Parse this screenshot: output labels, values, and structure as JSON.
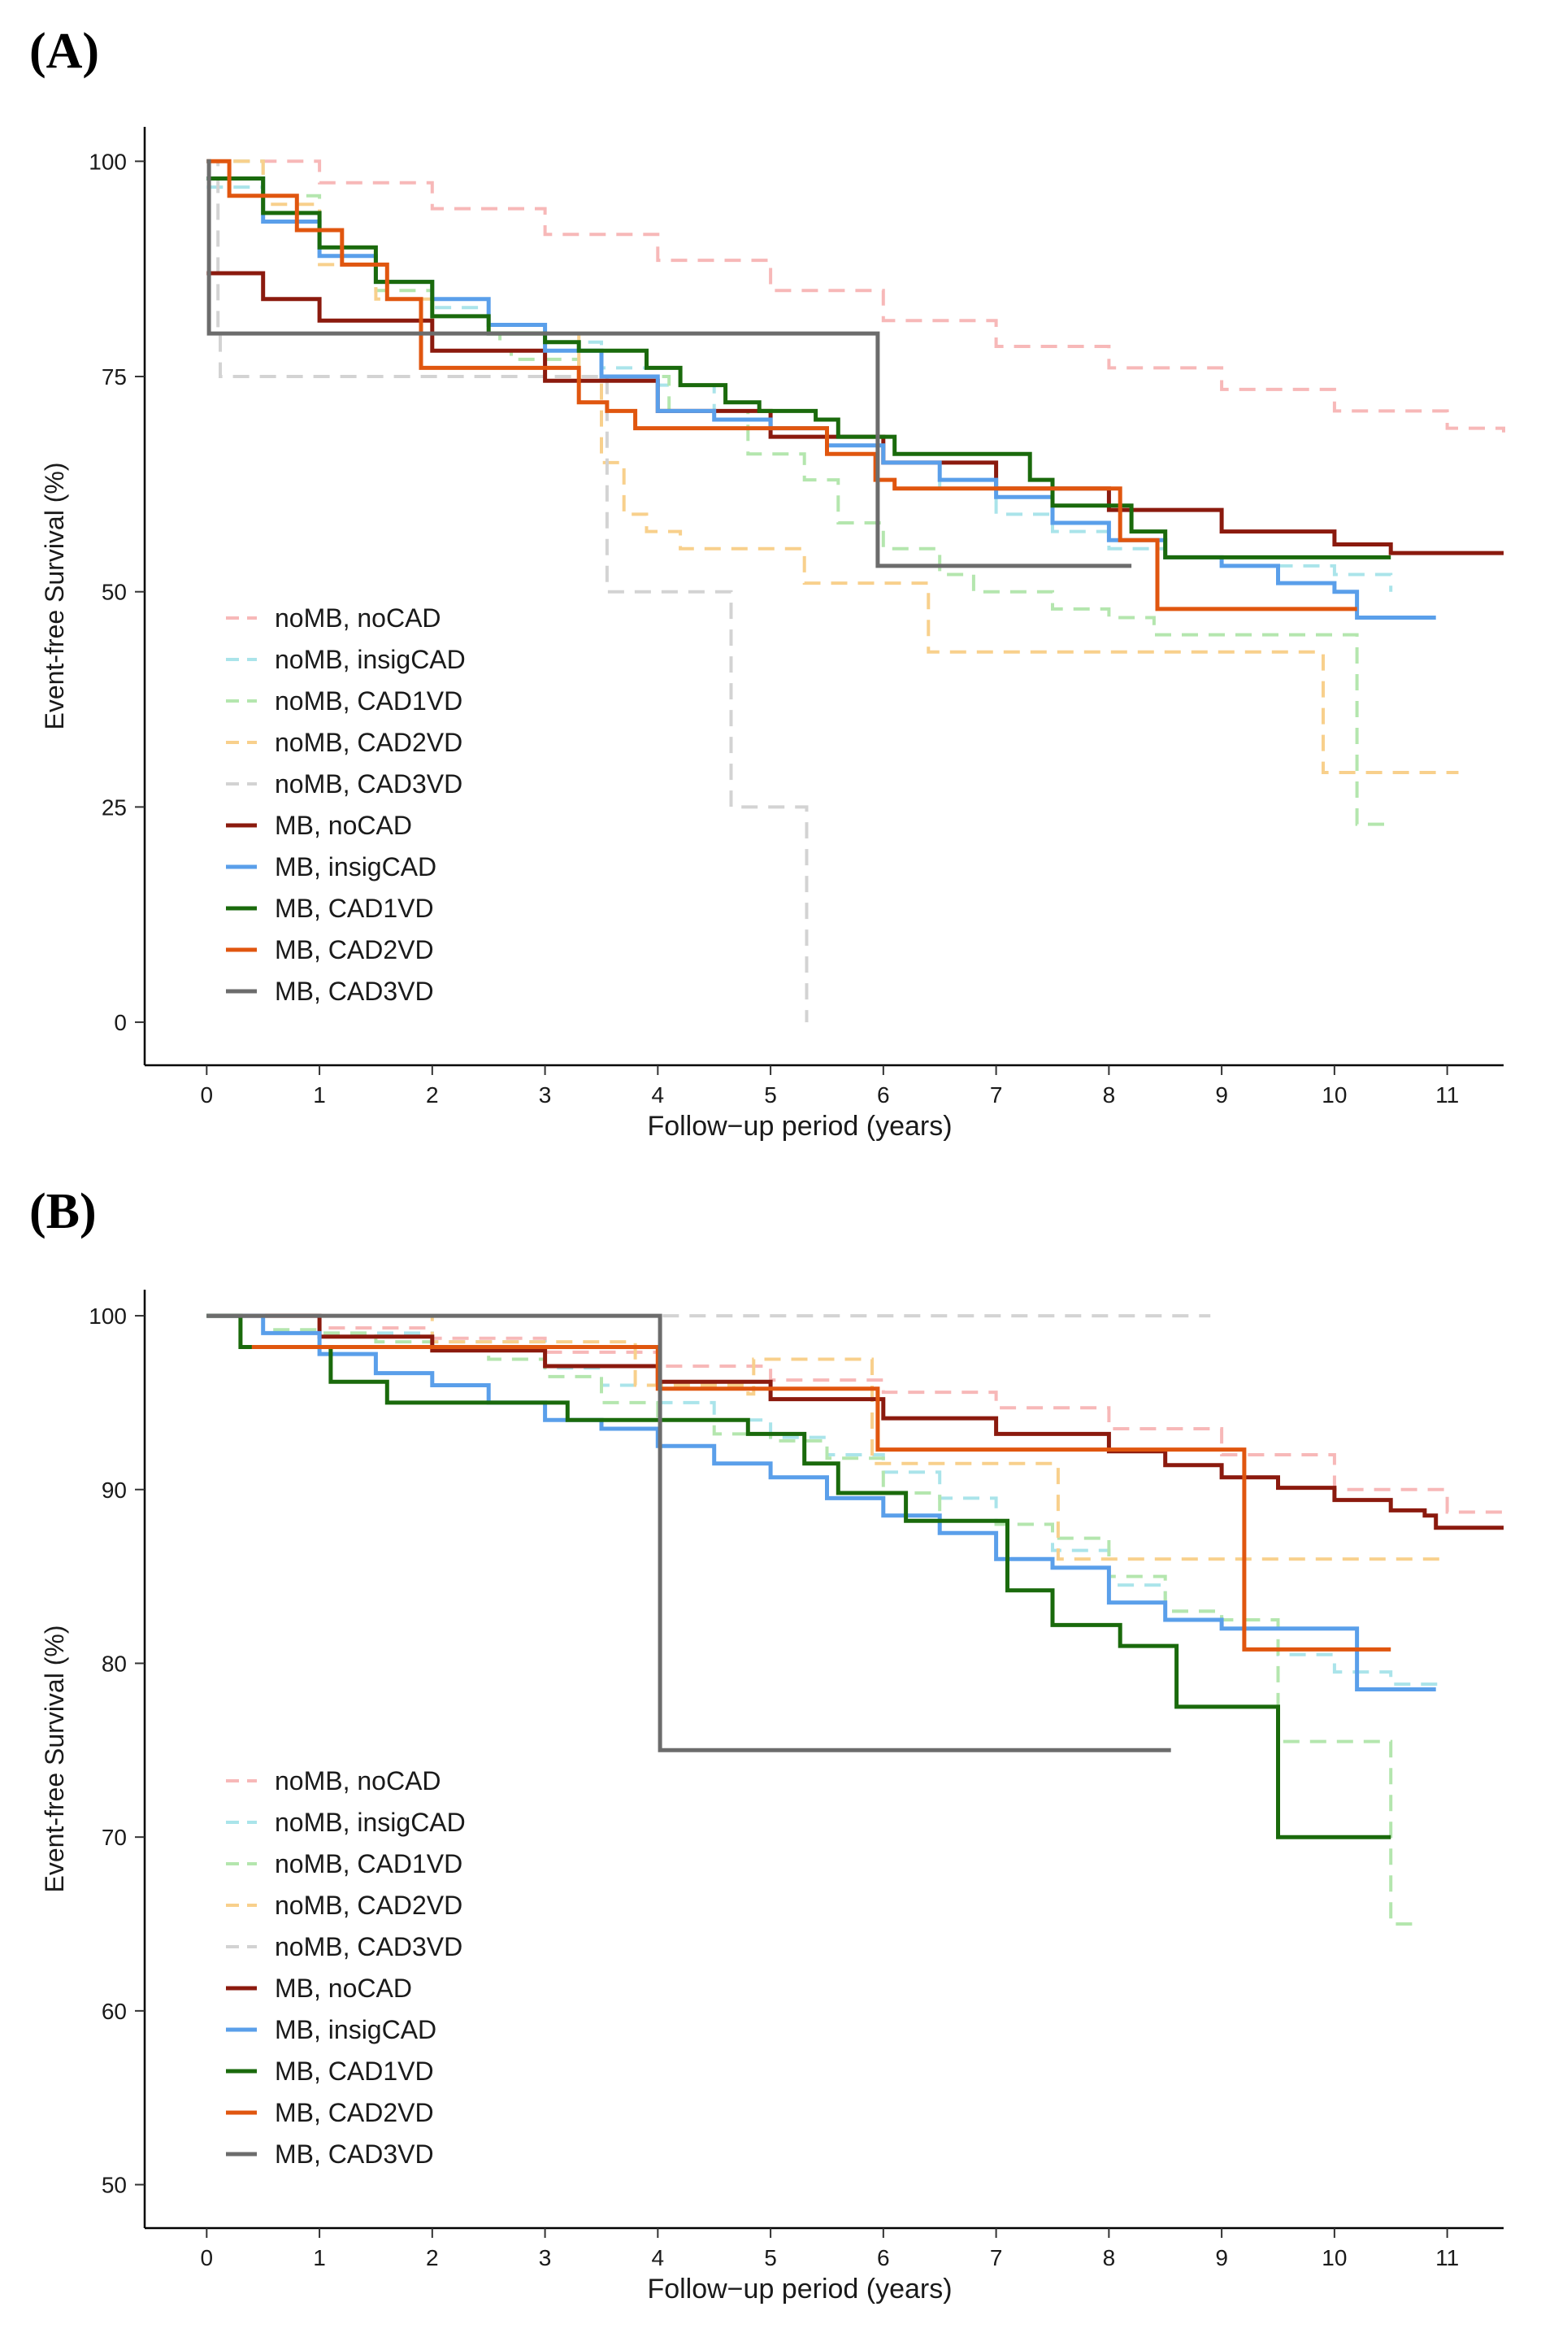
{
  "panels": [
    {
      "id": "A",
      "label": "(A)"
    },
    {
      "id": "B",
      "label": "(B)"
    }
  ],
  "legend_labels": [
    "noMB, noCAD",
    "noMB, insigCAD",
    "noMB, CAD1VD",
    "noMB, CAD2VD",
    "noMB, CAD3VD",
    "MB, noCAD",
    "MB, insigCAD",
    "MB, CAD1VD",
    "MB, CAD2VD",
    "MB, CAD3VD"
  ],
  "series_styles": [
    {
      "color": "#f7b8b8",
      "dash": true
    },
    {
      "color": "#aae4ea",
      "dash": true
    },
    {
      "color": "#b4e6ae",
      "dash": true
    },
    {
      "color": "#f8d08c",
      "dash": true
    },
    {
      "color": "#d3d3d3",
      "dash": true
    },
    {
      "color": "#8b1a0e",
      "dash": false
    },
    {
      "color": "#5a9fea",
      "dash": false
    },
    {
      "color": "#1a6a0c",
      "dash": false
    },
    {
      "color": "#e0560f",
      "dash": false
    },
    {
      "color": "#6c6c6c",
      "dash": false
    }
  ],
  "chart_data": [
    {
      "type": "line",
      "subtype": "kaplan-meier step",
      "title": "(A)",
      "xlabel": "Follow−up period (years)",
      "ylabel": "Event-free Survival (%)",
      "xlim": [
        -0.55,
        11.5
      ],
      "ylim": [
        -5,
        104
      ],
      "xticks": [
        0,
        1,
        2,
        3,
        4,
        5,
        6,
        7,
        8,
        9,
        10,
        11
      ],
      "yticks": [
        0,
        25,
        50,
        75,
        100
      ],
      "legend_position": "bottom-left",
      "series": [
        {
          "name": "noMB, noCAD",
          "x": [
            0,
            1,
            2,
            3,
            4,
            5,
            6,
            7,
            8,
            9,
            10,
            11,
            11.5
          ],
          "y": [
            100,
            97.5,
            94.5,
            91.5,
            88.5,
            85,
            81.5,
            78.5,
            76,
            73.5,
            71,
            69,
            68.5
          ]
        },
        {
          "name": "noMB, insigCAD",
          "x": [
            0,
            0.5,
            1,
            1.5,
            2,
            2.5,
            3,
            3.5,
            4,
            4.5,
            5,
            5.5,
            6,
            6.5,
            7,
            7.5,
            8,
            8.5,
            9,
            9.5,
            10,
            10.5
          ],
          "y": [
            97,
            93,
            89,
            86,
            83,
            81,
            79,
            76,
            74,
            71,
            69,
            67,
            65,
            62,
            59,
            57,
            55,
            54,
            53,
            53,
            52,
            50
          ]
        },
        {
          "name": "noMB, CAD1VD",
          "x": [
            0,
            0.5,
            1,
            1.5,
            2,
            2.6,
            2.7,
            3.3,
            4.1,
            4.8,
            5.3,
            5.6,
            6,
            6.5,
            6.8,
            7.5,
            8,
            8.4,
            9,
            10.1,
            10.2,
            10.5
          ],
          "y": [
            100,
            96,
            90,
            85,
            80,
            78,
            77,
            75,
            71,
            66,
            63,
            58,
            55,
            52,
            50,
            48,
            47,
            45,
            45,
            45,
            23,
            23
          ]
        },
        {
          "name": "noMB, CAD2VD",
          "x": [
            0,
            0.5,
            1,
            1.5,
            2.5,
            3.3,
            3.5,
            3.7,
            3.9,
            4.2,
            5.1,
            5.3,
            6.1,
            6.4,
            7.2,
            9.3,
            9.9,
            10,
            11.1
          ],
          "y": [
            100,
            95,
            88,
            84,
            80,
            75,
            65,
            59,
            57,
            55,
            55,
            51,
            51,
            43,
            43,
            43,
            29,
            29,
            29
          ]
        },
        {
          "name": "noMB, CAD3VD",
          "x": [
            0,
            0.1,
            0.12,
            3.5,
            3.55,
            4.6,
            4.65,
            5.3,
            5.32
          ],
          "y": [
            100,
            80,
            75,
            75,
            50,
            50,
            25,
            25,
            0
          ]
        },
        {
          "name": "MB, noCAD",
          "x": [
            0,
            0.5,
            1,
            2,
            3,
            4,
            5,
            6,
            7,
            8,
            9,
            10,
            10.5,
            11,
            11.5
          ],
          "y": [
            87,
            84,
            81.5,
            78,
            74.5,
            71,
            68,
            65,
            62,
            59.5,
            57,
            55.5,
            54.5,
            54.5,
            54.5
          ]
        },
        {
          "name": "MB, insigCAD",
          "x": [
            0,
            0.5,
            1,
            1.5,
            2,
            2.5,
            3,
            3.5,
            4,
            4.5,
            5,
            5.5,
            6,
            6.5,
            7,
            7.5,
            8,
            8.5,
            9,
            9.5,
            10,
            10.2,
            10.9
          ],
          "y": [
            98,
            93,
            89,
            86,
            84,
            81,
            78,
            75,
            71,
            70,
            69,
            67,
            65,
            63,
            61,
            58,
            56,
            54,
            53,
            51,
            50,
            47,
            47
          ]
        },
        {
          "name": "MB, CAD1VD",
          "x": [
            0,
            0.5,
            1,
            1.5,
            2,
            2.5,
            3,
            3.3,
            3.9,
            4.2,
            4.6,
            4.9,
            5.4,
            5.6,
            6.1,
            7.3,
            7.5,
            8.2,
            8.5,
            10.5
          ],
          "y": [
            98,
            94,
            90,
            86,
            82,
            80,
            79,
            78,
            76,
            74,
            72,
            71,
            70,
            68,
            66,
            63,
            60,
            57,
            54,
            54
          ]
        },
        {
          "name": "MB, CAD2VD",
          "x": [
            0,
            0.2,
            0.8,
            1.2,
            1.6,
            1.9,
            3.3,
            3.55,
            3.8,
            4.6,
            5.5,
            5.93,
            6.1,
            7.9,
            8.1,
            8.43,
            10.2
          ],
          "y": [
            100,
            96,
            92,
            88,
            84,
            76,
            72,
            71,
            69,
            69,
            66,
            63,
            62,
            62,
            56,
            48,
            48
          ]
        },
        {
          "name": "MB, CAD3VD",
          "x": [
            0,
            0.02,
            5.93,
            5.95,
            8.2
          ],
          "y": [
            100,
            80,
            80,
            53,
            53
          ]
        }
      ]
    },
    {
      "type": "line",
      "subtype": "kaplan-meier step",
      "title": "(B)",
      "xlabel": "Follow−up period (years)",
      "ylabel": "Event-free Survival (%)",
      "xlim": [
        -0.55,
        11.5
      ],
      "ylim": [
        47.5,
        101.5
      ],
      "xticks": [
        0,
        1,
        2,
        3,
        4,
        5,
        6,
        7,
        8,
        9,
        10,
        11
      ],
      "yticks": [
        50,
        60,
        70,
        80,
        90,
        100
      ],
      "legend_position": "bottom-left",
      "series": [
        {
          "name": "noMB, noCAD",
          "x": [
            0,
            1,
            2,
            3,
            4,
            5,
            6,
            7,
            8,
            9,
            10,
            11,
            11.5
          ],
          "y": [
            100,
            99.3,
            98.7,
            97.9,
            97.1,
            96.3,
            95.6,
            94.7,
            93.5,
            92,
            90,
            88.7,
            88.5
          ]
        },
        {
          "name": "noMB, insigCAD",
          "x": [
            0,
            1,
            2,
            3,
            3.5,
            4,
            4.5,
            5,
            5.5,
            6,
            6.5,
            7,
            7.5,
            8,
            8.5,
            9,
            9.5,
            10,
            10.5,
            11
          ],
          "y": [
            100,
            99,
            98.5,
            97,
            96,
            95,
            94,
            93,
            92,
            91,
            89.5,
            88,
            86.5,
            84.5,
            83,
            82,
            80.5,
            79.5,
            78.8,
            78.8
          ]
        },
        {
          "name": "noMB, CAD1VD",
          "x": [
            0,
            0.5,
            1,
            1.5,
            2,
            2.5,
            3,
            3.5,
            4,
            4.5,
            5,
            5.5,
            6,
            6.5,
            7,
            7.5,
            8,
            8.5,
            9,
            9.5,
            10,
            10.5,
            10.7
          ],
          "y": [
            100,
            99.2,
            99,
            98.5,
            98,
            97.5,
            96.5,
            95,
            94,
            93.2,
            92.8,
            91.8,
            89.8,
            88.2,
            88,
            87.2,
            85,
            83,
            82.5,
            75.5,
            75.5,
            65,
            65
          ]
        },
        {
          "name": "noMB, CAD2VD",
          "x": [
            0,
            2,
            3.8,
            4.8,
            4.85,
            5.9,
            6.2,
            7.5,
            7.55,
            11
          ],
          "y": [
            100,
            98.5,
            96,
            95.5,
            97.5,
            91.5,
            91.5,
            91.5,
            86,
            86
          ]
        },
        {
          "name": "noMB, CAD3VD",
          "x": [
            0,
            4.05,
            8.9
          ],
          "y": [
            100,
            100,
            100
          ]
        },
        {
          "name": "MB, noCAD",
          "x": [
            0,
            1,
            2,
            3,
            4,
            5,
            6,
            7,
            8,
            8.5,
            9,
            9.5,
            10,
            10.5,
            10.8,
            10.9,
            11.5
          ],
          "y": [
            100,
            98.8,
            98,
            97.1,
            96.2,
            95.2,
            94.1,
            93.2,
            92.2,
            91.4,
            90.7,
            90.1,
            89.4,
            88.8,
            88.5,
            87.8,
            87.8
          ]
        },
        {
          "name": "MB, insigCAD",
          "x": [
            0,
            0.5,
            1,
            1.5,
            2,
            2.5,
            3,
            3.5,
            4,
            4.5,
            5,
            5.5,
            6,
            6.5,
            7,
            7.5,
            8,
            8.5,
            9,
            9.5,
            10,
            10.2,
            10.9
          ],
          "y": [
            100,
            99,
            97.8,
            96.7,
            96,
            95,
            94,
            93.5,
            92.5,
            91.5,
            90.7,
            89.5,
            88.5,
            87.5,
            86,
            85.5,
            83.5,
            82.5,
            82,
            82,
            82,
            78.5,
            78.5
          ]
        },
        {
          "name": "MB, CAD1VD",
          "x": [
            0,
            0.3,
            1.1,
            1.6,
            3.2,
            4.8,
            5.3,
            5.6,
            6.2,
            7.1,
            7.5,
            8.1,
            8.6,
            9.5,
            10.5
          ],
          "y": [
            100,
            98.2,
            96.2,
            95,
            94,
            93.2,
            91.5,
            89.8,
            88.2,
            84.2,
            82.2,
            81,
            77.5,
            70,
            70
          ]
        },
        {
          "name": "MB, CAD2VD",
          "x": [
            0.4,
            0.45,
            3.95,
            4.0,
            5.9,
            5.95,
            8.2,
            9.15,
            9.2,
            10.5
          ],
          "y": [
            98.2,
            98.2,
            98.2,
            95.8,
            95.8,
            92.3,
            92.3,
            92.3,
            80.8,
            80.8
          ]
        },
        {
          "name": "MB, CAD3VD",
          "x": [
            0,
            4.0,
            4.02,
            8.55
          ],
          "y": [
            100,
            100,
            75,
            75
          ]
        }
      ]
    }
  ]
}
